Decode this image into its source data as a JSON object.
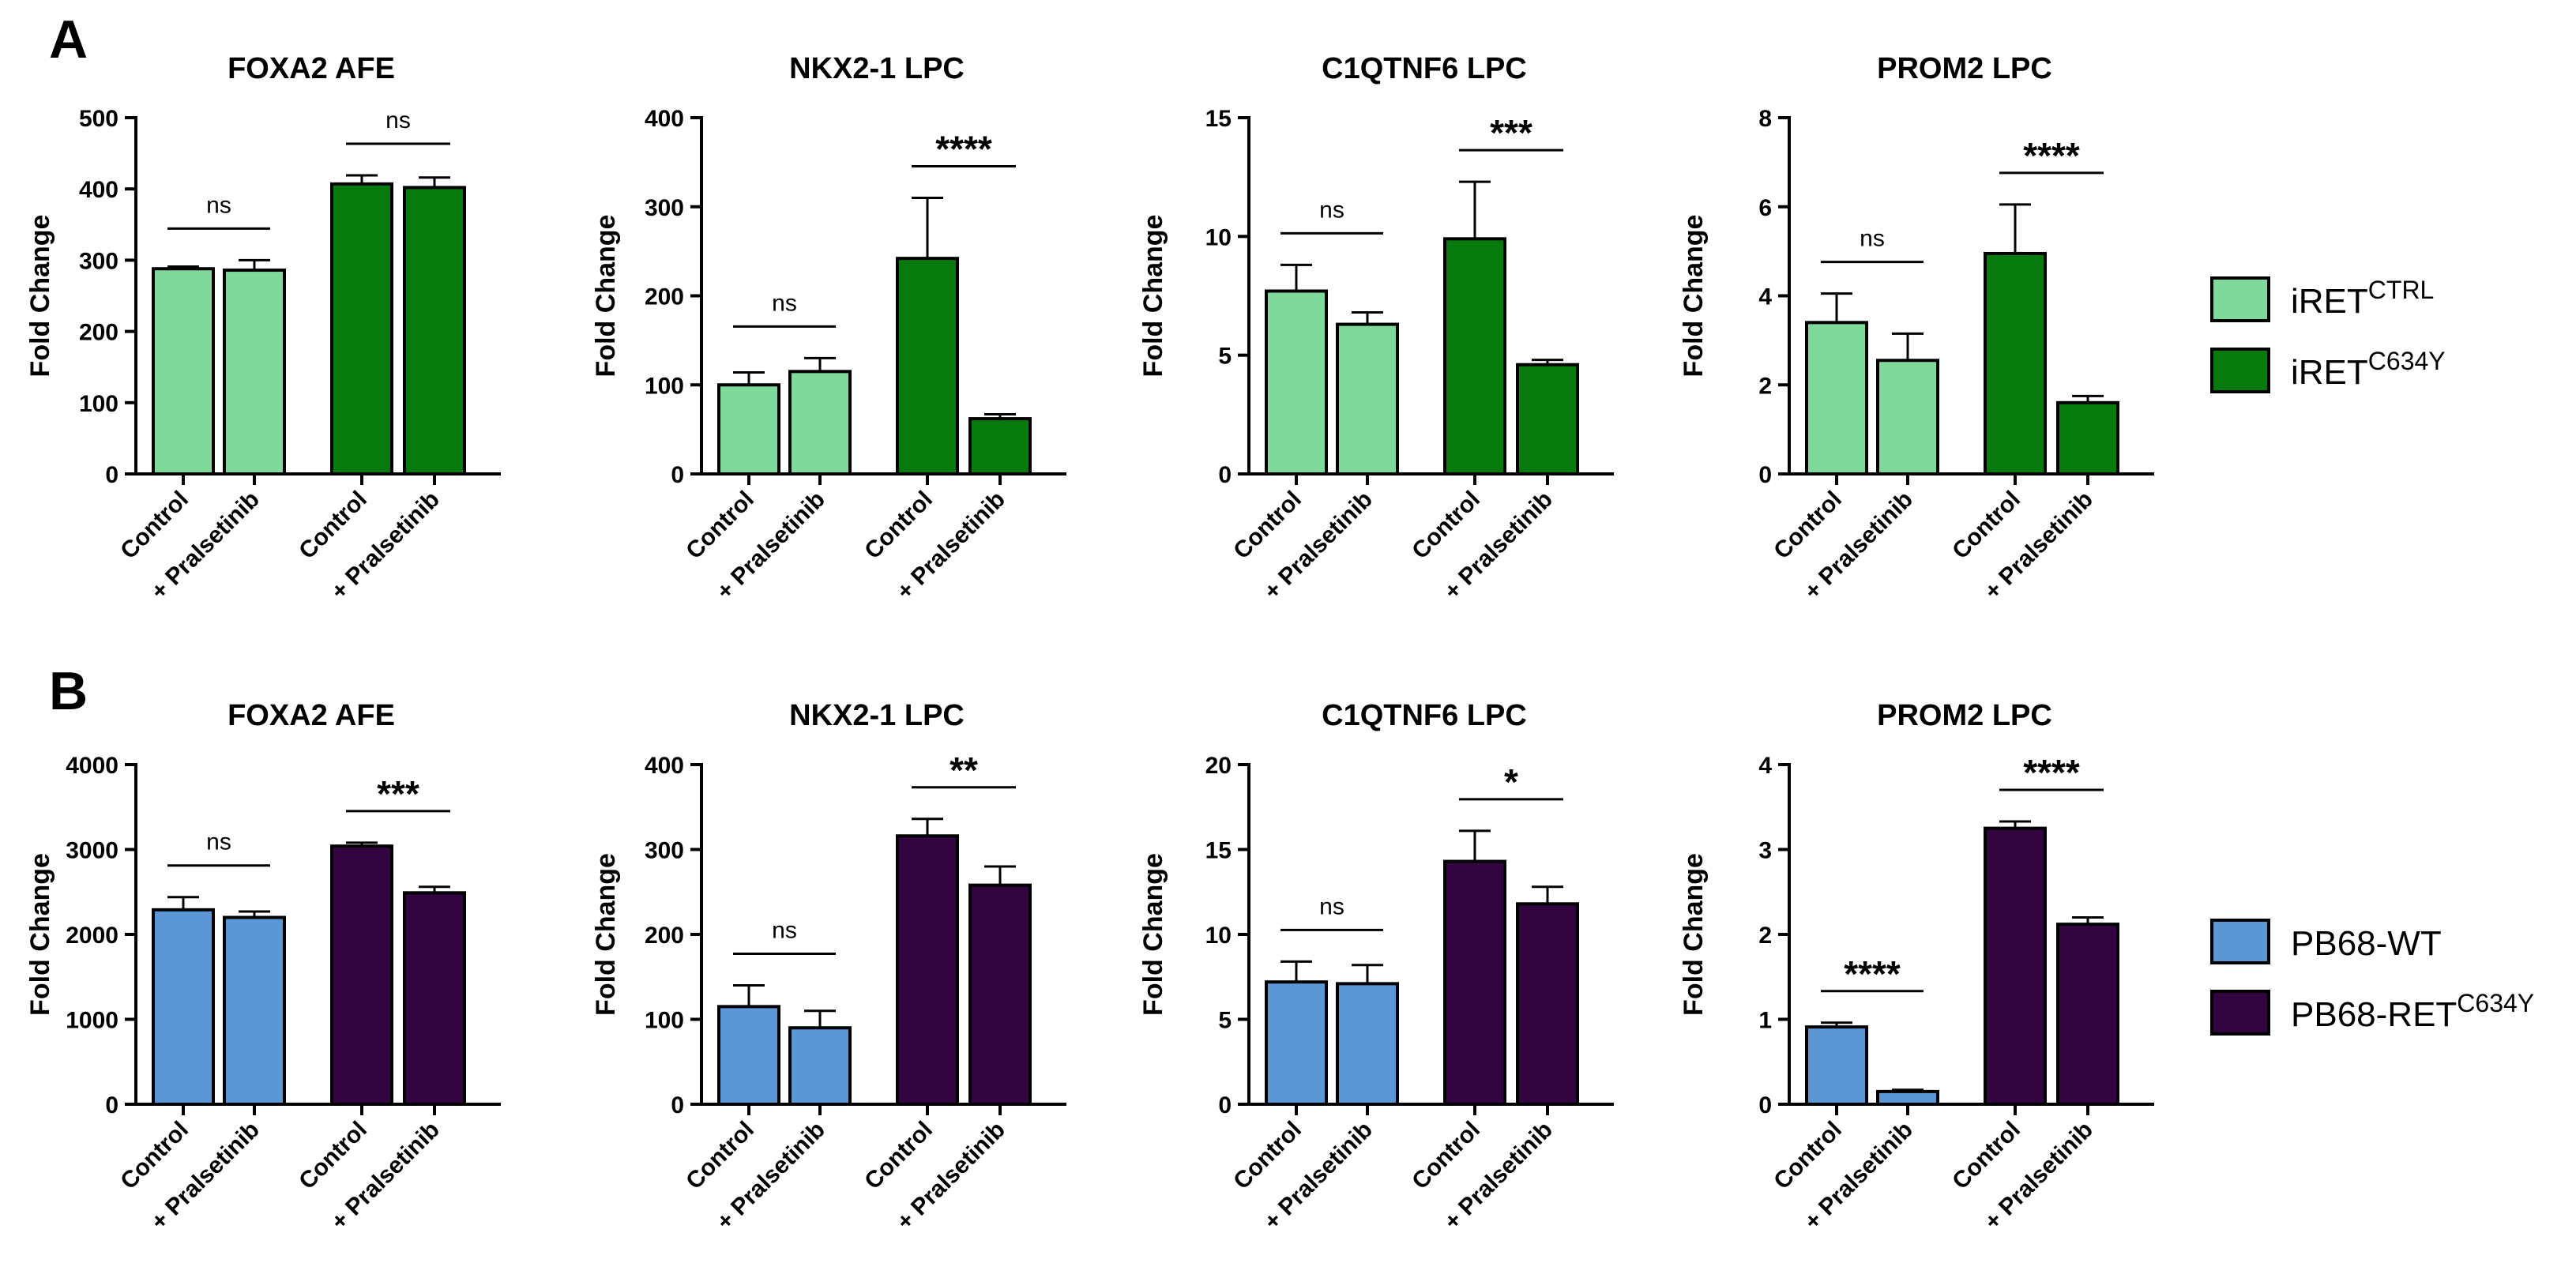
{
  "panel_labels": [
    "A",
    "B"
  ],
  "axis_ylabel": "Fold Change",
  "xcats": [
    "Control",
    "+ Pralsetinib",
    "Control",
    "+ Pralsetinib"
  ],
  "colors": {
    "A_light": "#7fd99a",
    "A_dark": "#077a0e",
    "B_light": "#5b96d6",
    "B_dark": "#330540"
  },
  "legends": [
    {
      "row": "A",
      "items": [
        {
          "base": "iRET",
          "sup": "CTRL",
          "color": "#7fd99a"
        },
        {
          "base": "iRET",
          "sup": "C634Y",
          "color": "#077a0e"
        }
      ]
    },
    {
      "row": "B",
      "items": [
        {
          "base": "PB68-WT",
          "sup": "",
          "color": "#5b96d6"
        },
        {
          "base": "PB68-RET",
          "sup": "C634Y",
          "color": "#330540"
        }
      ]
    }
  ],
  "chart_data": [
    {
      "type": "bar",
      "row": "A",
      "title": "FOXA2 AFE",
      "ylabel": "Fold Change",
      "categories": [
        "Control",
        "+ Pralsetinib",
        "Control",
        "+ Pralsetinib"
      ],
      "values": [
        288,
        286,
        407,
        402
      ],
      "errors": [
        3,
        14,
        12,
        14
      ],
      "ylim": [
        0,
        500
      ],
      "yticks": [
        0,
        100,
        200,
        300,
        400,
        500
      ],
      "series": [
        "iRETCTRL",
        "iRETCTRL",
        "iRETC634Y",
        "iRETC634Y"
      ],
      "significance": [
        "ns",
        "ns"
      ]
    },
    {
      "type": "bar",
      "row": "A",
      "title": "NKX2-1 LPC",
      "ylabel": "Fold Change",
      "categories": [
        "Control",
        "+ Pralsetinib",
        "Control",
        "+ Pralsetinib"
      ],
      "values": [
        100,
        115,
        242,
        62
      ],
      "errors": [
        14,
        15,
        68,
        5
      ],
      "ylim": [
        0,
        400
      ],
      "yticks": [
        0,
        100,
        200,
        300,
        400
      ],
      "series": [
        "iRETCTRL",
        "iRETCTRL",
        "iRETC634Y",
        "iRETC634Y"
      ],
      "significance": [
        "ns",
        "****"
      ]
    },
    {
      "type": "bar",
      "row": "A",
      "title": "C1QTNF6 LPC",
      "ylabel": "Fold Change",
      "categories": [
        "Control",
        "+ Pralsetinib",
        "Control",
        "+ Pralsetinib"
      ],
      "values": [
        7.7,
        6.3,
        9.9,
        4.6
      ],
      "errors": [
        1.1,
        0.5,
        2.4,
        0.2
      ],
      "ylim": [
        0,
        15
      ],
      "yticks": [
        0,
        5,
        10,
        15
      ],
      "series": [
        "iRETCTRL",
        "iRETCTRL",
        "iRETC634Y",
        "iRETC634Y"
      ],
      "significance": [
        "ns",
        "***"
      ]
    },
    {
      "type": "bar",
      "row": "A",
      "title": "PROM2 LPC",
      "ylabel": "Fold Change",
      "categories": [
        "Control",
        "+ Pralsetinib",
        "Control",
        "+ Pralsetinib"
      ],
      "values": [
        3.4,
        2.55,
        4.95,
        1.6
      ],
      "errors": [
        0.65,
        0.6,
        1.1,
        0.15
      ],
      "ylim": [
        0,
        8
      ],
      "yticks": [
        0,
        2,
        4,
        6,
        8
      ],
      "series": [
        "iRETCTRL",
        "iRETCTRL",
        "iRETC634Y",
        "iRETC634Y"
      ],
      "significance": [
        "ns",
        "****"
      ]
    },
    {
      "type": "bar",
      "row": "B",
      "title": "FOXA2 AFE",
      "ylabel": "Fold Change",
      "categories": [
        "Control",
        "+ Pralsetinib",
        "Control",
        "+ Pralsetinib"
      ],
      "values": [
        2290,
        2200,
        3040,
        2490
      ],
      "errors": [
        150,
        70,
        40,
        70
      ],
      "ylim": [
        0,
        4000
      ],
      "yticks": [
        0,
        1000,
        2000,
        3000,
        4000
      ],
      "series": [
        "PB68-WT",
        "PB68-WT",
        "PB68-RETC634Y",
        "PB68-RETC634Y"
      ],
      "significance": [
        "ns",
        "***"
      ]
    },
    {
      "type": "bar",
      "row": "B",
      "title": "NKX2-1 LPC",
      "ylabel": "Fold Change",
      "categories": [
        "Control",
        "+ Pralsetinib",
        "Control",
        "+ Pralsetinib"
      ],
      "values": [
        115,
        90,
        316,
        258
      ],
      "errors": [
        25,
        20,
        20,
        22
      ],
      "ylim": [
        0,
        400
      ],
      "yticks": [
        0,
        100,
        200,
        300,
        400
      ],
      "series": [
        "PB68-WT",
        "PB68-WT",
        "PB68-RETC634Y",
        "PB68-RETC634Y"
      ],
      "significance": [
        "ns",
        "**"
      ]
    },
    {
      "type": "bar",
      "row": "B",
      "title": "C1QTNF6 LPC",
      "ylabel": "Fold Change",
      "categories": [
        "Control",
        "+ Pralsetinib",
        "Control",
        "+ Pralsetinib"
      ],
      "values": [
        7.2,
        7.1,
        14.3,
        11.8
      ],
      "errors": [
        1.2,
        1.1,
        1.8,
        1.0
      ],
      "ylim": [
        0,
        20
      ],
      "yticks": [
        0,
        5,
        10,
        15,
        20
      ],
      "series": [
        "PB68-WT",
        "PB68-WT",
        "PB68-RETC634Y",
        "PB68-RETC634Y"
      ],
      "significance": [
        "ns",
        "*"
      ]
    },
    {
      "type": "bar",
      "row": "B",
      "title": "PROM2 LPC",
      "ylabel": "Fold Change",
      "categories": [
        "Control",
        "+ Pralsetinib",
        "Control",
        "+ Pralsetinib"
      ],
      "values": [
        0.91,
        0.15,
        3.25,
        2.12
      ],
      "errors": [
        0.05,
        0.02,
        0.08,
        0.08
      ],
      "ylim": [
        0,
        4
      ],
      "yticks": [
        0,
        1,
        2,
        3,
        4
      ],
      "series": [
        "PB68-WT",
        "PB68-WT",
        "PB68-RETC634Y",
        "PB68-RETC634Y"
      ],
      "significance": [
        "****",
        "****"
      ]
    }
  ]
}
